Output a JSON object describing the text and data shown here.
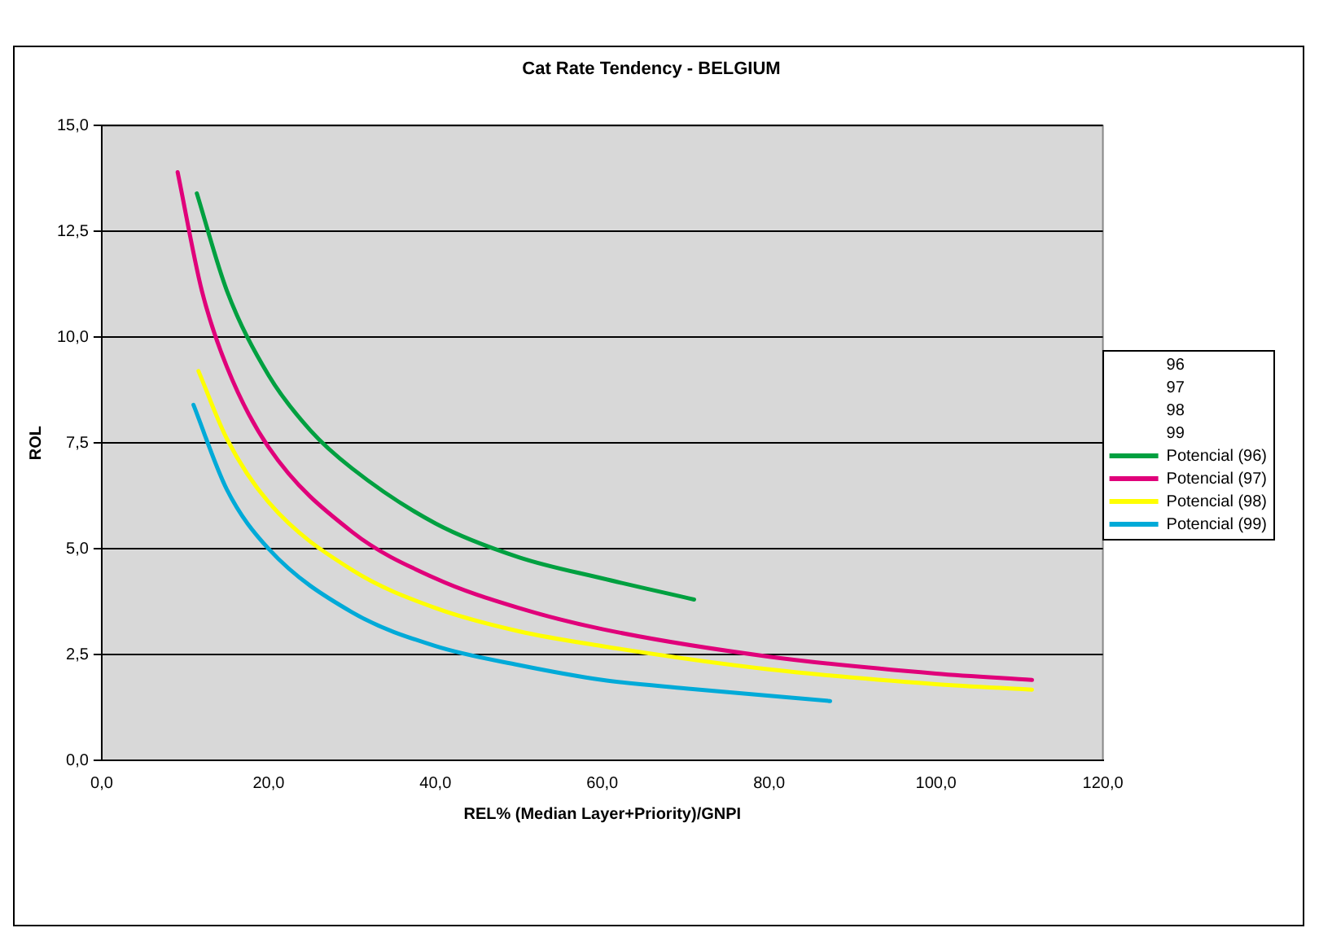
{
  "chart_data": {
    "type": "line",
    "title": "Cat Rate Tendency - BELGIUM",
    "xlabel": "REL% (Median Layer+Priority)/GNPI",
    "ylabel": "ROL",
    "xlim": [
      0,
      120
    ],
    "xticks": [
      {
        "value": 0,
        "label": "0,0"
      },
      {
        "value": 20,
        "label": "20,0"
      },
      {
        "value": 40,
        "label": "40,0"
      },
      {
        "value": 60,
        "label": "60,0"
      },
      {
        "value": 80,
        "label": "80,0"
      },
      {
        "value": 100,
        "label": "100,0"
      },
      {
        "value": 120,
        "label": "120,0"
      }
    ],
    "ylim": [
      0,
      15
    ],
    "yticks": [
      {
        "value": 0,
        "label": "0,0"
      },
      {
        "value": 2.5,
        "label": "2,5"
      },
      {
        "value": 5,
        "label": "5,0"
      },
      {
        "value": 7.5,
        "label": "7,5"
      },
      {
        "value": 10,
        "label": "10,0"
      },
      {
        "value": 12.5,
        "label": "12,5"
      },
      {
        "value": 15,
        "label": "15,0"
      }
    ],
    "grid": "y",
    "legend": "right",
    "marker": "none",
    "line_style": "solid",
    "series": [
      {
        "name": "96"
      },
      {
        "name": "97"
      },
      {
        "name": "98"
      },
      {
        "name": "99"
      },
      {
        "name": "Potencial (96)",
        "color": "#00a040",
        "x": [
          11.4,
          15,
          20,
          25,
          30,
          40,
          50,
          60,
          71
        ],
        "values": [
          13.4,
          11.1,
          9.1,
          7.8,
          6.9,
          5.6,
          4.8,
          4.3,
          3.8
        ]
      },
      {
        "name": "Potencial (97)",
        "color": "#e0007a",
        "x": [
          9.1,
          12,
          15,
          20,
          30,
          40,
          50,
          60,
          80,
          100,
          111.5
        ],
        "values": [
          13.9,
          11.1,
          9.3,
          7.4,
          5.4,
          4.3,
          3.6,
          3.1,
          2.45,
          2.05,
          1.9
        ]
      },
      {
        "name": "Potencial (98)",
        "color": "#ffff00",
        "x": [
          11.6,
          15,
          20,
          30,
          40,
          50,
          60,
          80,
          100,
          111.5
        ],
        "values": [
          9.2,
          7.6,
          6.1,
          4.5,
          3.6,
          3.05,
          2.7,
          2.15,
          1.8,
          1.67
        ]
      },
      {
        "name": "Potencial (99)",
        "color": "#00aad8",
        "x": [
          11,
          15,
          20,
          30,
          40,
          50,
          60,
          70,
          87.3
        ],
        "values": [
          8.4,
          6.4,
          5.0,
          3.5,
          2.7,
          2.25,
          1.9,
          1.7,
          1.4
        ]
      }
    ]
  }
}
